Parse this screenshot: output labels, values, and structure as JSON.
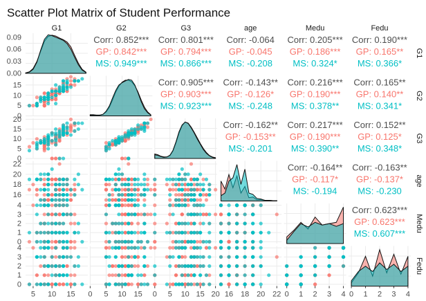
{
  "chart_data": {
    "type": "scatter",
    "title": "Scatter Plot Matrix of Student Performance",
    "variables": [
      "G1",
      "G2",
      "G3",
      "age",
      "Medu",
      "Fedu"
    ],
    "groups": [
      {
        "name": "GP",
        "color": "#F8766D"
      },
      {
        "name": "MS",
        "color": "#00BFC4"
      }
    ],
    "ranges": {
      "G1": [
        3,
        19.5
      ],
      "G2": [
        0,
        19.5
      ],
      "G3": [
        0,
        20.5
      ],
      "age": [
        14.8,
        22.6
      ],
      "Medu": [
        -0.2,
        4.2
      ],
      "Fedu": [
        -0.2,
        4.2
      ]
    },
    "bottom_ticks": {
      "G1": [
        5,
        10,
        15
      ],
      "G2": [
        0,
        5,
        10,
        15
      ],
      "G3": [
        0,
        5,
        10,
        15,
        20
      ],
      "age": [
        16,
        18,
        20,
        22
      ],
      "Medu": [
        0,
        1,
        2,
        3,
        4
      ],
      "Fedu": [
        0,
        1,
        2,
        3,
        4
      ]
    },
    "left_ticks": [
      {
        "var": "G1",
        "labels": [
          "0.09",
          "0.06",
          "0.03",
          "0.00"
        ],
        "values": [
          0.09,
          0.06,
          0.03,
          0.0
        ],
        "density_max": 0.1
      },
      {
        "var": "G2",
        "labels": [
          "15",
          "10",
          "5",
          "0"
        ],
        "values": [
          15,
          10,
          5,
          0
        ]
      },
      {
        "var": "G3",
        "labels": [
          "20",
          "15",
          "10",
          "5",
          "0"
        ],
        "values": [
          20,
          15,
          10,
          5,
          0
        ]
      },
      {
        "var": "age",
        "labels": [
          "22",
          "20",
          "18",
          "16"
        ],
        "values": [
          22,
          20,
          18,
          16
        ]
      },
      {
        "var": "Medu",
        "labels": [
          "4",
          "3",
          "2",
          "1",
          "0"
        ],
        "values": [
          4,
          3,
          2,
          1,
          0
        ]
      },
      {
        "var": "Fedu",
        "labels": [
          "4",
          "3",
          "2",
          "1",
          "0"
        ],
        "values": [
          4,
          3,
          2,
          1,
          0
        ]
      }
    ],
    "correlations": [
      {
        "row": "G1",
        "col": "G2",
        "corr": "Corr: 0.852***",
        "gp": "GP: 0.842***",
        "ms": "MS: 0.949***"
      },
      {
        "row": "G1",
        "col": "G3",
        "corr": "Corr: 0.801***",
        "gp": "GP: 0.794***",
        "ms": "MS: 0.866***"
      },
      {
        "row": "G1",
        "col": "age",
        "corr": "Corr: -0.064",
        "gp": "GP: -0.045",
        "ms": "MS: -0.208"
      },
      {
        "row": "G1",
        "col": "Medu",
        "corr": "Corr: 0.205***",
        "gp": "GP: 0.186***",
        "ms": "MS: 0.324*"
      },
      {
        "row": "G1",
        "col": "Fedu",
        "corr": "Corr: 0.190***",
        "gp": "GP: 0.165**",
        "ms": "MS: 0.366*"
      },
      {
        "row": "G2",
        "col": "G3",
        "corr": "Corr: 0.905***",
        "gp": "GP: 0.903***",
        "ms": "MS: 0.923***"
      },
      {
        "row": "G2",
        "col": "age",
        "corr": "Corr: -0.143**",
        "gp": "GP: -0.126*",
        "ms": "MS: -0.248"
      },
      {
        "row": "G2",
        "col": "Medu",
        "corr": "Corr: 0.216***",
        "gp": "GP: 0.190***",
        "ms": "MS: 0.378**"
      },
      {
        "row": "G2",
        "col": "Fedu",
        "corr": "Corr: 0.165**",
        "gp": "GP: 0.140**",
        "ms": "MS: 0.341*"
      },
      {
        "row": "G3",
        "col": "age",
        "corr": "Corr: -0.162**",
        "gp": "GP: -0.153**",
        "ms": "MS: -0.201"
      },
      {
        "row": "G3",
        "col": "Medu",
        "corr": "Corr: 0.217***",
        "gp": "GP: 0.190***",
        "ms": "MS: 0.390**"
      },
      {
        "row": "G3",
        "col": "Fedu",
        "corr": "Corr: 0.152**",
        "gp": "GP: 0.125*",
        "ms": "MS: 0.348*"
      },
      {
        "row": "age",
        "col": "Medu",
        "corr": "Corr: -0.164**",
        "gp": "GP: -0.117*",
        "ms": "MS: -0.194"
      },
      {
        "row": "age",
        "col": "Fedu",
        "corr": "Corr: -0.163**",
        "gp": "GP: -0.137*",
        "ms": "MS: -0.230"
      },
      {
        "row": "Medu",
        "col": "Fedu",
        "corr": "Corr: 0.623***",
        "gp": "GP: 0.623***",
        "ms": "MS: 0.607***"
      }
    ],
    "densities": {
      "G1": {
        "x": [
          3,
          4,
          5,
          6,
          7,
          8,
          9,
          10,
          11,
          12,
          13,
          14,
          15,
          16,
          17,
          18,
          19
        ],
        "GP": [
          0.001,
          0.004,
          0.012,
          0.03,
          0.055,
          0.08,
          0.092,
          0.095,
          0.093,
          0.088,
          0.084,
          0.078,
          0.066,
          0.045,
          0.025,
          0.01,
          0.003
        ],
        "MS": [
          0.001,
          0.003,
          0.01,
          0.028,
          0.058,
          0.085,
          0.096,
          0.094,
          0.09,
          0.086,
          0.082,
          0.074,
          0.06,
          0.04,
          0.021,
          0.008,
          0.002
        ]
      },
      "G2": {
        "x": [
          0,
          1,
          2,
          3,
          4,
          5,
          6,
          7,
          8,
          9,
          10,
          11,
          12,
          13,
          14,
          15,
          16,
          17,
          18,
          19
        ],
        "GP": [
          0.003,
          0.003,
          0.002,
          0.002,
          0.004,
          0.01,
          0.022,
          0.04,
          0.06,
          0.075,
          0.085,
          0.09,
          0.09,
          0.086,
          0.076,
          0.06,
          0.04,
          0.022,
          0.01,
          0.003
        ],
        "MS": [
          0.002,
          0.002,
          0.002,
          0.002,
          0.004,
          0.012,
          0.025,
          0.045,
          0.064,
          0.078,
          0.084,
          0.088,
          0.092,
          0.09,
          0.078,
          0.058,
          0.036,
          0.018,
          0.008,
          0.002
        ]
      },
      "G3": {
        "x": [
          0,
          1,
          2,
          3,
          4,
          5,
          6,
          7,
          8,
          9,
          10,
          11,
          12,
          13,
          14,
          15,
          16,
          17,
          18,
          19,
          20
        ],
        "GP": [
          0.012,
          0.01,
          0.006,
          0.004,
          0.004,
          0.008,
          0.02,
          0.042,
          0.068,
          0.088,
          0.098,
          0.095,
          0.084,
          0.07,
          0.055,
          0.04,
          0.027,
          0.016,
          0.008,
          0.004,
          0.002
        ],
        "MS": [
          0.01,
          0.008,
          0.005,
          0.003,
          0.004,
          0.009,
          0.022,
          0.045,
          0.072,
          0.09,
          0.098,
          0.094,
          0.082,
          0.068,
          0.052,
          0.038,
          0.024,
          0.014,
          0.007,
          0.003,
          0.001
        ]
      },
      "age": {
        "x": [
          15,
          15.5,
          16,
          16.5,
          17,
          17.5,
          18,
          18.5,
          19,
          19.5,
          20,
          20.5,
          21,
          21.5,
          22
        ],
        "GP": [
          0.3,
          0.18,
          0.4,
          0.2,
          0.38,
          0.12,
          0.22,
          0.05,
          0.06,
          0.02,
          0.02,
          0.01,
          0.01,
          0.005,
          0.005
        ],
        "MS": [
          0.08,
          0.12,
          0.3,
          0.35,
          0.55,
          0.25,
          0.48,
          0.12,
          0.1,
          0.04,
          0.03,
          0.01,
          0.01,
          0.005,
          0.005
        ]
      },
      "Medu": {
        "x": [
          0,
          0.5,
          1,
          1.5,
          2,
          2.5,
          3,
          3.5,
          4
        ],
        "GP": [
          0.1,
          0.2,
          0.32,
          0.22,
          0.4,
          0.28,
          0.3,
          0.32,
          0.55
        ],
        "MS": [
          0.05,
          0.18,
          0.3,
          0.25,
          0.32,
          0.28,
          0.3,
          0.26,
          0.3
        ]
      },
      "Fedu": {
        "x": [
          0,
          0.5,
          1,
          1.5,
          2,
          2.5,
          3,
          3.5,
          4
        ],
        "GP": [
          0.05,
          0.2,
          0.45,
          0.15,
          0.55,
          0.2,
          0.48,
          0.18,
          0.45
        ],
        "MS": [
          0.08,
          0.22,
          0.3,
          0.22,
          0.35,
          0.25,
          0.33,
          0.22,
          0.3
        ]
      }
    },
    "grid": true,
    "legend": "none"
  }
}
